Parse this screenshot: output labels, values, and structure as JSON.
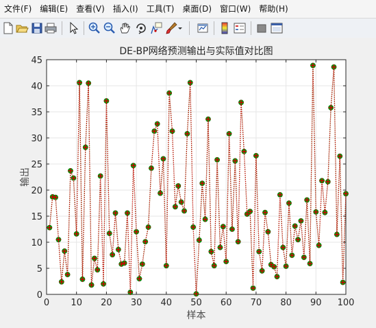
{
  "window": {
    "menus": [
      "文件(F)",
      "编辑(E)",
      "查看(V)",
      "插入(I)",
      "工具(T)",
      "桌面(D)",
      "窗口(W)",
      "帮助(H)"
    ],
    "toolbar_icons": [
      "new-file-icon",
      "open-folder-icon",
      "save-icon",
      "print-icon",
      "pointer-icon",
      "zoom-in-icon",
      "zoom-out-icon",
      "pan-hand-icon",
      "rotate-3d-icon",
      "data-cursor-icon",
      "brush-icon",
      "brush-dropdown-icon",
      "link-plot-icon",
      "colorbar-icon",
      "legend-icon",
      "hide-plot-tools-icon",
      "show-plot-tools-icon"
    ]
  },
  "chart_data": {
    "type": "line",
    "title": "DE-BP网络预测输出与实际值对比图",
    "xlabel": "样本",
    "ylabel": "输出",
    "xlim": [
      0,
      100
    ],
    "ylim": [
      0,
      45
    ],
    "xticks": [
      0,
      10,
      20,
      30,
      40,
      50,
      60,
      70,
      80,
      90,
      100
    ],
    "yticks": [
      0,
      5,
      10,
      15,
      20,
      25,
      30,
      35,
      40,
      45
    ],
    "grid": true,
    "colors": {
      "predicted": "#00a000",
      "actual": "#cc0000"
    },
    "series": [
      {
        "marker": "circle",
        "x": [
          1,
          2,
          3,
          4,
          5,
          6,
          7,
          8,
          9,
          10,
          11,
          12,
          13,
          14,
          15,
          16,
          17,
          18,
          19,
          20,
          21,
          22,
          23,
          24,
          25,
          26,
          27,
          28,
          29,
          30,
          31,
          32,
          33,
          34,
          35,
          36,
          37,
          38,
          39,
          40,
          41,
          42,
          43,
          44,
          45,
          46,
          47,
          48,
          49,
          50,
          51,
          52,
          53,
          54,
          55,
          56,
          57,
          58,
          59,
          60,
          61,
          62,
          63,
          64,
          65,
          66,
          67,
          68,
          69,
          70,
          71,
          72,
          73,
          74,
          75,
          76,
          77,
          78,
          79,
          80,
          81,
          82,
          83,
          84,
          85,
          86,
          87,
          88,
          89,
          90,
          91,
          92,
          93,
          94,
          95,
          96,
          97,
          98,
          99,
          100
        ],
        "values": [
          12.8,
          18.7,
          18.6,
          10.5,
          2.4,
          8.3,
          3.8,
          23.7,
          22.3,
          11.6,
          40.6,
          2.9,
          28.2,
          40.5,
          1.8,
          6.9,
          4.7,
          22.7,
          2.0,
          37.1,
          11.7,
          7.6,
          15.6,
          8.6,
          5.8,
          6.0,
          15.6,
          0.4,
          24.7,
          12.0,
          3.0,
          5.8,
          10.1,
          12.9,
          24.2,
          31.3,
          32.7,
          19.4,
          26.0,
          5.5,
          38.6,
          31.3,
          16.8,
          20.8,
          17.7,
          16.0,
          30.8,
          40.6,
          12.9,
          0.1,
          10.4,
          21.3,
          14.4,
          33.6,
          8.2,
          5.5,
          25.8,
          9.0,
          13.0,
          6.3,
          30.8,
          12.5,
          25.6,
          10.1,
          36.8,
          27.4,
          15.4,
          15.9,
          1.2,
          26.6,
          8.2,
          4.5,
          15.7,
          12.0,
          5.7,
          5.3,
          3.4,
          19.1,
          9.0,
          5.4,
          17.5,
          7.5,
          13.1,
          10.5,
          14.1,
          7.1,
          18.1,
          5.9,
          43.9,
          15.8,
          9.4,
          21.8,
          15.7,
          21.6,
          35.8,
          43.6,
          11.5,
          26.5,
          2.3,
          19.3
        ]
      },
      {
        "marker": "plus",
        "x": [
          1,
          2,
          3,
          4,
          5,
          6,
          7,
          8,
          9,
          10,
          11,
          12,
          13,
          14,
          15,
          16,
          17,
          18,
          19,
          20,
          21,
          22,
          23,
          24,
          25,
          26,
          27,
          28,
          29,
          30,
          31,
          32,
          33,
          34,
          35,
          36,
          37,
          38,
          39,
          40,
          41,
          42,
          43,
          44,
          45,
          46,
          47,
          48,
          49,
          50,
          51,
          52,
          53,
          54,
          55,
          56,
          57,
          58,
          59,
          60,
          61,
          62,
          63,
          64,
          65,
          66,
          67,
          68,
          69,
          70,
          71,
          72,
          73,
          74,
          75,
          76,
          77,
          78,
          79,
          80,
          81,
          82,
          83,
          84,
          85,
          86,
          87,
          88,
          89,
          90,
          91,
          92,
          93,
          94,
          95,
          96,
          97,
          98,
          99,
          100
        ],
        "values": [
          12.8,
          18.7,
          18.6,
          10.5,
          2.4,
          8.3,
          3.8,
          23.7,
          22.3,
          11.6,
          40.6,
          2.9,
          28.2,
          40.5,
          1.8,
          6.9,
          4.7,
          22.7,
          2.0,
          37.1,
          11.7,
          7.6,
          15.6,
          8.6,
          5.8,
          6.0,
          15.6,
          0.4,
          24.7,
          12.0,
          3.0,
          5.8,
          10.1,
          12.9,
          24.2,
          31.3,
          32.7,
          19.4,
          26.0,
          5.5,
          38.6,
          31.3,
          16.8,
          20.8,
          17.7,
          16.0,
          30.8,
          40.6,
          12.9,
          0.1,
          10.4,
          21.3,
          14.4,
          33.6,
          8.2,
          5.5,
          25.8,
          9.0,
          13.0,
          6.3,
          30.8,
          12.5,
          25.6,
          10.1,
          36.8,
          27.4,
          15.4,
          15.9,
          1.2,
          26.6,
          8.2,
          4.5,
          15.7,
          12.0,
          5.7,
          5.3,
          3.4,
          19.1,
          9.0,
          5.4,
          17.5,
          7.5,
          13.1,
          10.5,
          14.1,
          7.1,
          18.1,
          5.9,
          43.9,
          15.8,
          9.4,
          21.8,
          15.7,
          21.6,
          35.8,
          43.6,
          11.5,
          26.5,
          2.3,
          19.3
        ]
      }
    ]
  }
}
